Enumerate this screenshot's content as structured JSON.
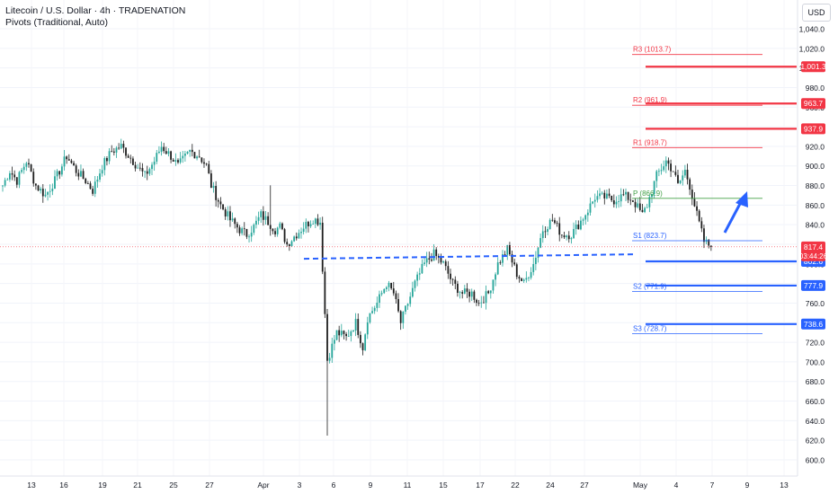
{
  "header": {
    "title": "Litecoin / U.S. Dollar · 4h · TRADENATION",
    "indicator": "Pivots (Traditional, Auto)"
  },
  "currency": "USD",
  "colors": {
    "bull": "#26a69a",
    "bear": "#1e1e1e",
    "resistance": "#f23645",
    "support": "#2962ff",
    "pivot": "#43a047",
    "price": "#f23645"
  },
  "price_scale": {
    "ticks": [
      600,
      620,
      640,
      660,
      680,
      700,
      720,
      740,
      760,
      780,
      800,
      820,
      840,
      860,
      880,
      900,
      920,
      940,
      960,
      980,
      1000,
      1020,
      1040
    ],
    "tick_labels": [
      "600.0",
      "620.0",
      "640.0",
      "660.0",
      "680.0",
      "700.0",
      "720.0",
      "740.0",
      "760.0",
      "780.0",
      "800.0",
      "820.0",
      "840.0",
      "860.0",
      "880.0",
      "900.0",
      "920.0",
      "940.0",
      "960.0",
      "980.0",
      "1,000.0",
      "1,020.0",
      "1,040.0"
    ]
  },
  "time_scale": {
    "labels": [
      "13",
      "16",
      "19",
      "21",
      "25",
      "27",
      "Apr",
      "3",
      "6",
      "9",
      "11",
      "15",
      "17",
      "22",
      "24",
      "27",
      "May",
      "4",
      "7",
      "9",
      "13"
    ]
  },
  "chart_data": {
    "type": "candlestick",
    "symbol": "Litecoin / U.S. Dollar",
    "timeframe": "4h",
    "ylim": [
      590,
      1050
    ],
    "last_price": 817.4,
    "countdown": "03:44:26",
    "pivots": [
      {
        "name": "R3",
        "value": 1013.7,
        "label": "R3 (1013.7)"
      },
      {
        "name": "R2",
        "value": 961.9,
        "label": "R2 (961.9)"
      },
      {
        "name": "R1",
        "value": 918.7,
        "label": "R1 (918.7)"
      },
      {
        "name": "P",
        "value": 866.9,
        "label": "P (866.9)"
      },
      {
        "name": "S1",
        "value": 823.7,
        "label": "S1 (823.7)"
      },
      {
        "name": "S2",
        "value": 771.9,
        "label": "S2 (771.9)"
      },
      {
        "name": "S3",
        "value": 728.7,
        "label": "S3 (728.7)"
      }
    ],
    "levels": [
      {
        "value": 1001.3,
        "label": "1,001.3",
        "kind": "resistance"
      },
      {
        "value": 963.7,
        "label": "963.7",
        "kind": "resistance"
      },
      {
        "value": 937.9,
        "label": "937.9",
        "kind": "resistance"
      },
      {
        "value": 802.6,
        "label": "802.6",
        "kind": "support"
      },
      {
        "value": 777.9,
        "label": "777.9",
        "kind": "support"
      },
      {
        "value": 738.6,
        "label": "738.6",
        "kind": "support"
      }
    ],
    "dashed_support_value": 808,
    "anchors": [
      [
        0,
        880
      ],
      [
        3,
        895
      ],
      [
        6,
        885
      ],
      [
        10,
        905
      ],
      [
        14,
        880
      ],
      [
        18,
        870
      ],
      [
        22,
        885
      ],
      [
        27,
        910
      ],
      [
        31,
        895
      ],
      [
        35,
        885
      ],
      [
        38,
        875
      ],
      [
        42,
        900
      ],
      [
        46,
        915
      ],
      [
        50,
        920
      ],
      [
        55,
        905
      ],
      [
        60,
        890
      ],
      [
        64,
        905
      ],
      [
        67,
        920
      ],
      [
        71,
        910
      ],
      [
        74,
        900
      ],
      [
        79,
        915
      ],
      [
        83,
        910
      ],
      [
        86,
        900
      ],
      [
        88,
        880
      ],
      [
        92,
        860
      ],
      [
        96,
        845
      ],
      [
        100,
        835
      ],
      [
        103,
        830
      ],
      [
        106,
        838
      ],
      [
        109,
        850
      ],
      [
        112,
        843
      ],
      [
        115,
        835
      ],
      [
        117,
        838
      ],
      [
        120,
        820
      ],
      [
        123,
        828
      ],
      [
        127,
        838
      ],
      [
        131,
        846
      ],
      [
        134,
        843
      ],
      [
        137,
        702
      ],
      [
        141,
        730
      ],
      [
        145,
        725
      ],
      [
        149,
        740
      ],
      [
        152,
        715
      ],
      [
        154,
        745
      ],
      [
        158,
        760
      ],
      [
        162,
        780
      ],
      [
        165,
        770
      ],
      [
        168,
        740
      ],
      [
        171,
        760
      ],
      [
        174,
        780
      ],
      [
        178,
        800
      ],
      [
        182,
        810
      ],
      [
        186,
        800
      ],
      [
        190,
        780
      ],
      [
        194,
        770
      ],
      [
        198,
        770
      ],
      [
        201,
        760
      ],
      [
        205,
        770
      ],
      [
        209,
        800
      ],
      [
        213,
        815
      ],
      [
        217,
        790
      ],
      [
        220,
        780
      ],
      [
        224,
        800
      ],
      [
        228,
        835
      ],
      [
        232,
        845
      ],
      [
        236,
        830
      ],
      [
        240,
        830
      ],
      [
        243,
        840
      ],
      [
        247,
        855
      ],
      [
        250,
        868
      ],
      [
        254,
        868
      ],
      [
        258,
        865
      ],
      [
        262,
        870
      ],
      [
        266,
        865
      ],
      [
        270,
        850
      ],
      [
        272,
        860
      ],
      [
        276,
        890
      ],
      [
        280,
        905
      ],
      [
        283,
        895
      ],
      [
        285,
        880
      ],
      [
        288,
        895
      ],
      [
        290,
        880
      ],
      [
        293,
        850
      ],
      [
        296,
        823
      ],
      [
        299,
        817.4
      ]
    ],
    "annotation": "blue arrow pointing up toward pivot P"
  }
}
